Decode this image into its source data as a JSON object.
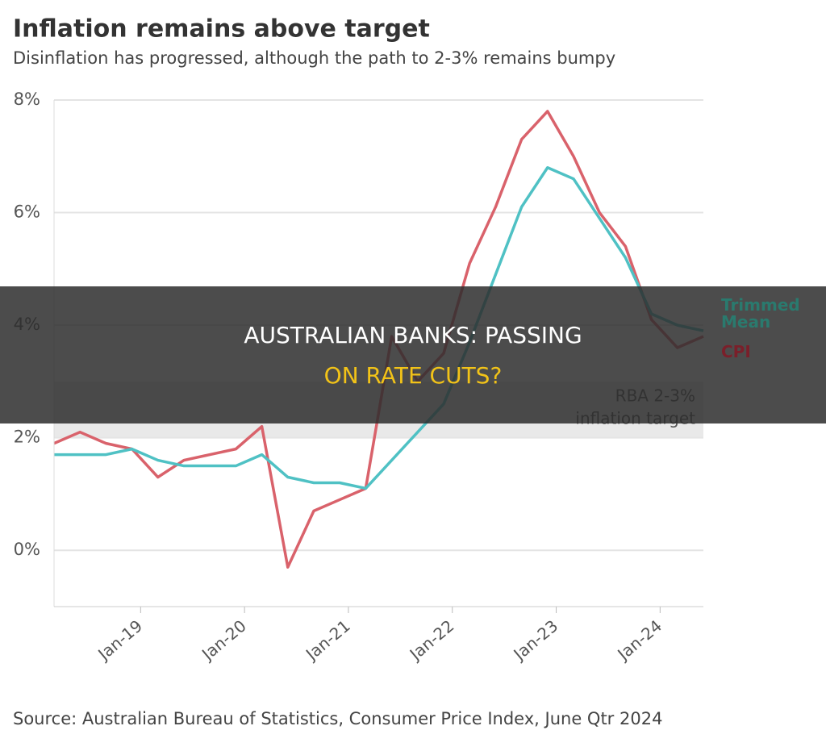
{
  "chart_data": {
    "type": "line",
    "title": "Inflation remains above target",
    "subtitle": "Disinflation has progressed, although the path to 2-3% remains bumpy",
    "source": "Source: Australian Bureau of Statistics, Consumer Price Index, June Qtr 2024",
    "x": [
      "2018-03",
      "2018-06",
      "2018-09",
      "2018-12",
      "2019-03",
      "2019-06",
      "2019-09",
      "2019-12",
      "2020-03",
      "2020-06",
      "2020-09",
      "2020-12",
      "2021-03",
      "2021-06",
      "2021-09",
      "2021-12",
      "2022-03",
      "2022-06",
      "2022-09",
      "2022-12",
      "2023-03",
      "2023-06",
      "2023-09",
      "2023-12",
      "2024-03",
      "2024-06"
    ],
    "series": [
      {
        "name": "CPI",
        "color": "#d9626b",
        "label_color": "#7a1f2a",
        "values": [
          1.9,
          2.1,
          1.9,
          1.8,
          1.3,
          1.6,
          1.7,
          1.8,
          2.2,
          -0.3,
          0.7,
          0.9,
          1.1,
          3.8,
          3.0,
          3.5,
          5.1,
          6.1,
          7.3,
          7.8,
          7.0,
          6.0,
          5.4,
          4.1,
          3.6,
          3.8
        ]
      },
      {
        "name": "Trimmed Mean",
        "color": "#4fc1c4",
        "label_color": "#2a7a6e",
        "values": [
          1.7,
          1.7,
          1.7,
          1.8,
          1.6,
          1.5,
          1.5,
          1.5,
          1.7,
          1.3,
          1.2,
          1.2,
          1.1,
          1.6,
          2.1,
          2.6,
          3.7,
          4.9,
          6.1,
          6.8,
          6.6,
          5.9,
          5.2,
          4.2,
          4.0,
          3.9
        ]
      }
    ],
    "xlim": [
      "2018-03",
      "2024-06"
    ],
    "xticks": [
      {
        "value": "2019-01",
        "label": "Jan-19"
      },
      {
        "value": "2020-01",
        "label": "Jan-20"
      },
      {
        "value": "2021-01",
        "label": "Jan-21"
      },
      {
        "value": "2022-01",
        "label": "Jan-22"
      },
      {
        "value": "2023-01",
        "label": "Jan-23"
      },
      {
        "value": "2024-01",
        "label": "Jan-24"
      }
    ],
    "ylim": [
      -1,
      8
    ],
    "yticks": [
      {
        "value": 0,
        "label": "0%"
      },
      {
        "value": 2,
        "label": "2%"
      },
      {
        "value": 4,
        "label": "4%"
      },
      {
        "value": 6,
        "label": "6%"
      },
      {
        "value": 8,
        "label": "8%"
      }
    ],
    "grid": true,
    "target_band": [
      2,
      3
    ],
    "annotation": [
      "RBA 2-3%",
      "inflation target"
    ]
  },
  "banner": {
    "line1": "AUSTRALIAN BANKS: PASSING",
    "line2": "ON RATE CUTS?"
  }
}
